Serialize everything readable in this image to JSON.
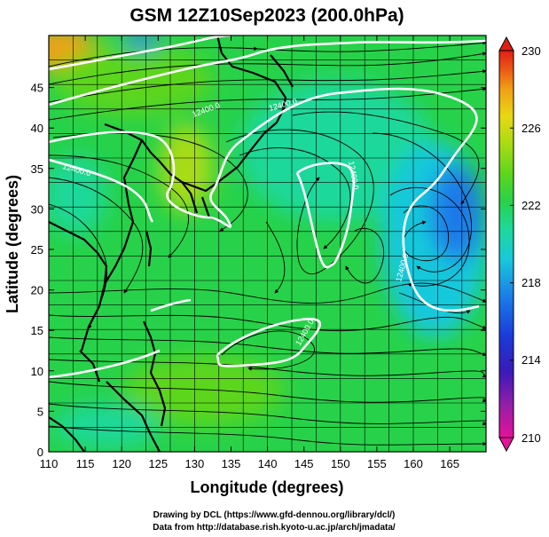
{
  "title": "GSM 12Z10Sep2023 (200.0hPa)",
  "xlabel": "Longitude (degrees)",
  "ylabel": "Latitude  (degrees)",
  "x_ticks": [
    "110",
    "115",
    "120",
    "125",
    "130",
    "135",
    "140",
    "145",
    "150",
    "155",
    "160",
    "165"
  ],
  "y_ticks": [
    "0",
    "5",
    "10",
    "15",
    "20",
    "25",
    "30",
    "35",
    "40",
    "45"
  ],
  "colorbar": {
    "ticks": [
      "210",
      "214",
      "218",
      "222",
      "226",
      "230"
    ],
    "colors": [
      "#e5129a",
      "#9a1ea8",
      "#3a1ab8",
      "#1a3ad8",
      "#1a7ae8",
      "#19c8dc",
      "#1ed89a",
      "#27d24a",
      "#5cd61c",
      "#a8dc12",
      "#e8d814",
      "#f0a014",
      "#ec5a14",
      "#e01e14"
    ]
  },
  "contour_labels": [
    "12400.0",
    "12400.0",
    "12400.0",
    "12400.0",
    "12400.0",
    "12400.0"
  ],
  "credits": {
    "line1": "Drawing by DCL (https://www.gfd-dennou.org/library/dcl/)",
    "line2": "Data from http://database.rish.kyoto-u.ac.jp/arch/jmadata/"
  },
  "map": {
    "lon_range": [
      110,
      170
    ],
    "lat_range": [
      0,
      50
    ],
    "field": "temperature (K) shaded, geopotential height contours, wind streamlines"
  },
  "colors": {
    "field_main": "#27d24a",
    "field_warm": "#5cd61c",
    "field_cool": "#1ed89a",
    "field_cold": "#19c8dc",
    "contour": "#ffffff",
    "streamline": "#000000"
  }
}
